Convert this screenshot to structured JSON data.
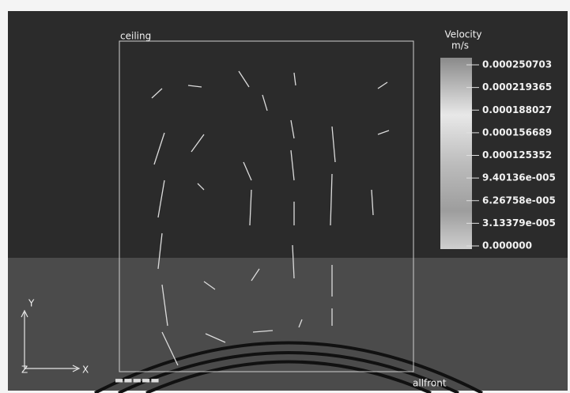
{
  "labels": {
    "ceiling": "ceiling",
    "front": "allfront"
  },
  "legend": {
    "title": "Velocity",
    "unit": "m/s",
    "ticks": [
      "0.000250703",
      "0.000219365",
      "0.000188027",
      "0.000156689",
      "0.000125352",
      "9.40136e-005",
      "6.26758e-005",
      "3.13379e-005",
      "0.000000"
    ]
  },
  "axes": {
    "y": "Y",
    "x": "X",
    "z": "Z"
  }
}
